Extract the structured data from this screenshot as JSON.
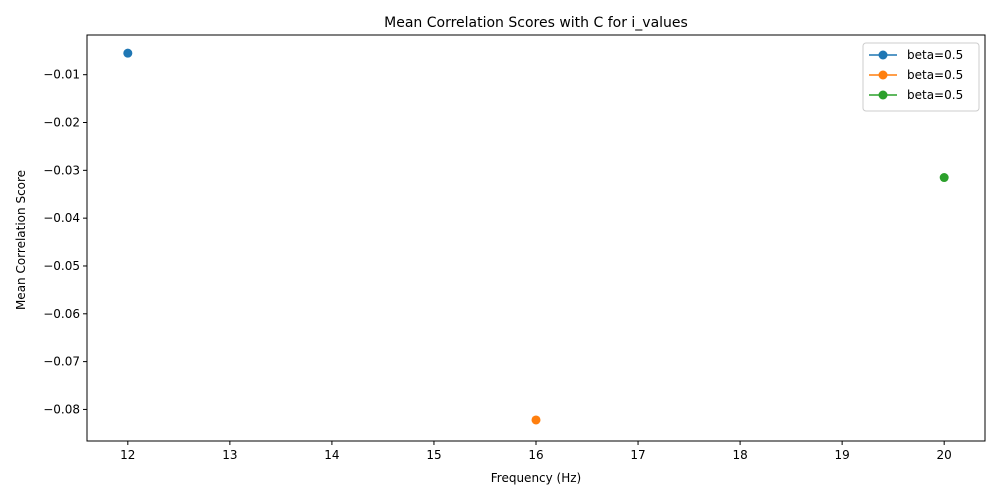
{
  "chart_data": {
    "type": "line",
    "title": "Mean Correlation Scores with C for i_values",
    "xlabel": "Frequency (Hz)",
    "ylabel": "Mean Correlation Score",
    "xlim": [
      11.6,
      20.4
    ],
    "ylim": [
      -0.0866,
      -0.0017
    ],
    "xticks": [
      12,
      13,
      14,
      15,
      16,
      17,
      18,
      19,
      20
    ],
    "xtick_labels": [
      "12",
      "13",
      "14",
      "15",
      "16",
      "17",
      "18",
      "19",
      "20"
    ],
    "yticks": [
      -0.01,
      -0.02,
      -0.03,
      -0.04,
      -0.05,
      -0.06,
      -0.07,
      -0.08
    ],
    "ytick_labels": [
      "−0.01",
      "−0.02",
      "−0.03",
      "−0.04",
      "−0.05",
      "−0.06",
      "−0.07",
      "−0.08"
    ],
    "grid": false,
    "legend_position": "top-right",
    "series": [
      {
        "name": "beta=0.5",
        "color": "#1f77b4",
        "marker": "circle",
        "x": [
          12
        ],
        "y": [
          -0.0055
        ]
      },
      {
        "name": "beta=0.5",
        "color": "#ff7f0e",
        "marker": "circle",
        "x": [
          16
        ],
        "y": [
          -0.0822
        ]
      },
      {
        "name": "beta=0.5",
        "color": "#2ca02c",
        "marker": "circle",
        "x": [
          20
        ],
        "y": [
          -0.0315
        ]
      }
    ]
  }
}
